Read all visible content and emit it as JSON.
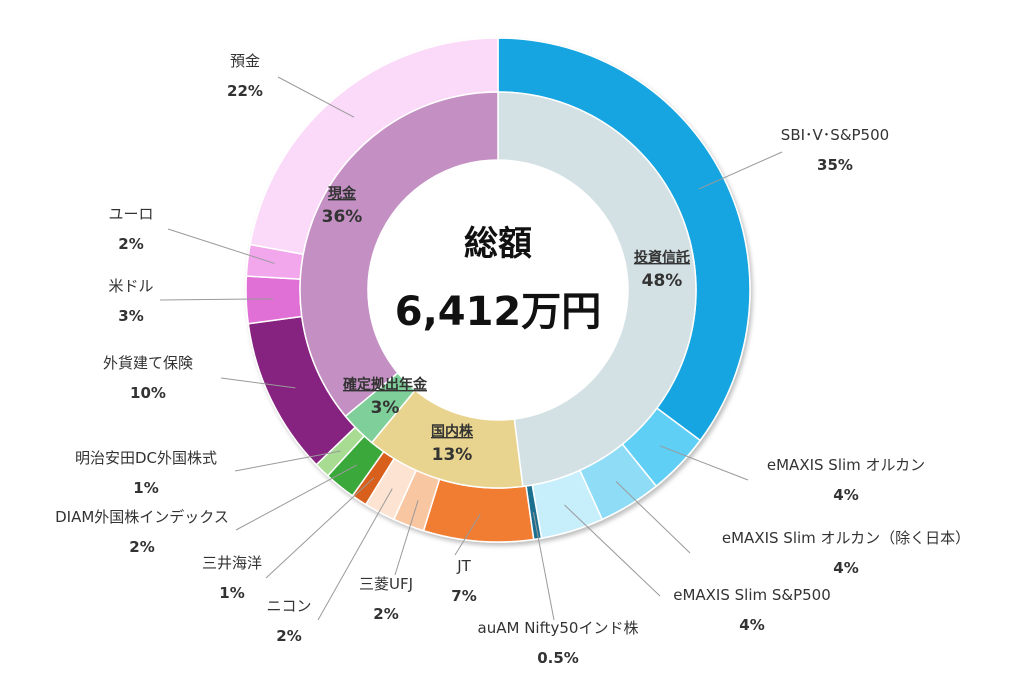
{
  "center": {
    "title": "総額",
    "total": "6,412万円"
  },
  "chart_data": {
    "type": "pie",
    "inner_ring": [
      {
        "label": "投資信託",
        "value": 48,
        "value_label": "48%",
        "color": "#d3e0e4"
      },
      {
        "label": "国内株",
        "value": 13,
        "value_label": "13%",
        "color": "#e8d48e"
      },
      {
        "label": "確定拠出年金",
        "value": 3,
        "value_label": "3%",
        "color": "#7fcf9a"
      },
      {
        "label": "現金",
        "value": 36,
        "value_label": "36%",
        "color": "#c490c4"
      }
    ],
    "outer_ring": [
      {
        "label": "SBI･V･S&P500",
        "value": 35,
        "value_label": "35%",
        "color": "#12a5e0"
      },
      {
        "label": "eMAXIS Slim オルカン",
        "value": 4,
        "value_label": "4%",
        "color": "#5fcff5"
      },
      {
        "label": "eMAXIS Slim オルカン（除く日本）",
        "value": 4,
        "value_label": "4%",
        "color": "#8fdcf7"
      },
      {
        "label": "eMAXIS Slim S&P500",
        "value": 4,
        "value_label": "4%",
        "color": "#c7eefb"
      },
      {
        "label": "auAM Nifty50インド株",
        "value": 0.5,
        "value_label": "0.5%",
        "color": "#1a6f8f"
      },
      {
        "label": "JT",
        "value": 7,
        "value_label": "7%",
        "color": "#f07d33"
      },
      {
        "label": "三菱UFJ",
        "value": 2,
        "value_label": "2%",
        "color": "#f9c6a2"
      },
      {
        "label": "ニコン",
        "value": 2,
        "value_label": "2%",
        "color": "#fde4d2"
      },
      {
        "label": "三井海洋",
        "value": 1,
        "value_label": "1%",
        "color": "#d9601e"
      },
      {
        "label": "DIAM外国株インデックス",
        "value": 2,
        "value_label": "2%",
        "color": "#3aa83a"
      },
      {
        "label": "明治安田DC外国株式",
        "value": 1,
        "value_label": "1%",
        "color": "#a7dc92"
      },
      {
        "label": "外貨建て保険",
        "value": 10,
        "value_label": "10%",
        "color": "#86207f"
      },
      {
        "label": "米ドル",
        "value": 3,
        "value_label": "3%",
        "color": "#e06fd6"
      },
      {
        "label": "ユーロ",
        "value": 2,
        "value_label": "2%",
        "color": "#f2a6ec"
      },
      {
        "label": "預金",
        "value": 22,
        "value_label": "22%",
        "color": "#fbd9f8"
      }
    ]
  }
}
